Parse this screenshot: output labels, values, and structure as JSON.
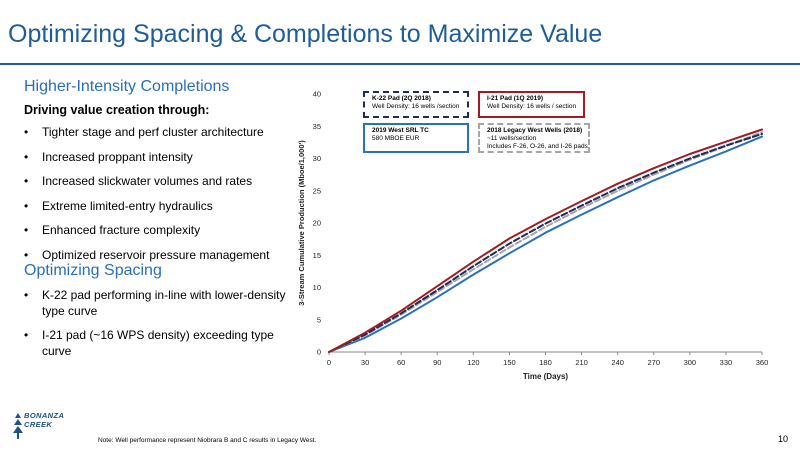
{
  "slide": {
    "title": "Optimizing Spacing & Completions to Maximize Value",
    "page_number": "10",
    "footnote": "Note: Well performance represent Niobrara B and C results in Legacy West.",
    "logo_lines": [
      "BONANZA",
      "CREEK"
    ],
    "colors": {
      "accent_blue": "#1f5c99",
      "accent_red": "#a01c22",
      "navy": "#1f2a55",
      "gray": "#9a9a9a"
    }
  },
  "completions": {
    "heading": "Higher-Intensity Completions",
    "lead": "Driving value creation through:",
    "bullets": [
      "Tighter stage and perf cluster architecture",
      "Increased proppant intensity",
      "Increased slickwater volumes and rates",
      "Extreme limited-entry hydraulics",
      "Enhanced fracture complexity",
      "Optimized reservoir pressure management"
    ]
  },
  "spacing": {
    "heading": "Optimizing Spacing",
    "bullets": [
      "K-22 pad performing in-line with lower-density type curve",
      "I-21 pad (~16 WPS density) exceeding type curve"
    ]
  },
  "legend": {
    "k22": {
      "title": "K-22 Pad (2Q 2018)",
      "lines": [
        "Well Density: 16 wells /section"
      ]
    },
    "i21": {
      "title": "I-21 Pad (1Q 2019)",
      "lines": [
        "Well Density: 16 wells / section"
      ]
    },
    "tc": {
      "title": "2019 West SRL TC",
      "lines": [
        "580 MBOE EUR"
      ]
    },
    "legacy": {
      "title": "2018 Legacy West Wells (2018)",
      "lines": [
        "~11 wells/section",
        "Includes F-26, O-26, and I-26 pads"
      ]
    }
  },
  "chart_data": {
    "type": "line",
    "xlabel": "Time (Days)",
    "ylabel": "3-Stream Cumulative Production (Mboe/1,000')",
    "xlim": [
      0,
      360
    ],
    "ylim": [
      0,
      40
    ],
    "xticks": [
      0,
      30,
      60,
      90,
      120,
      150,
      180,
      210,
      240,
      270,
      300,
      330,
      360
    ],
    "yticks": [
      0,
      5,
      10,
      15,
      20,
      25,
      30,
      35,
      40
    ],
    "grid": false,
    "x": [
      0,
      30,
      60,
      90,
      120,
      150,
      180,
      210,
      240,
      270,
      300,
      330,
      360
    ],
    "series": [
      {
        "key": "tc",
        "name": "2019 West SRL TC",
        "color": "#2a72b8",
        "dash": "solid",
        "values": [
          0,
          2.2,
          5.2,
          8.5,
          12.0,
          15.3,
          18.5,
          21.3,
          24.0,
          26.6,
          28.9,
          31.1,
          33.4
        ]
      },
      {
        "key": "legacy",
        "name": "2018 Legacy West Wells (2018)",
        "color": "#a6a6a6",
        "dash": "dashed",
        "values": [
          0,
          2.6,
          5.8,
          9.3,
          12.8,
          16.2,
          19.4,
          22.3,
          25.0,
          27.5,
          29.8,
          31.9,
          34.1
        ]
      },
      {
        "key": "k22",
        "name": "K-22 Pad (2Q 2018)",
        "color": "#1f2a55",
        "dash": "dashed",
        "values": [
          0,
          2.7,
          6.0,
          9.6,
          13.3,
          16.8,
          19.9,
          22.7,
          25.4,
          27.8,
          30.0,
          32.0,
          33.8
        ]
      },
      {
        "key": "i21",
        "name": "I-21 Pad (1Q 2019)",
        "color": "#a01c22",
        "dash": "solid",
        "values": [
          0,
          3.0,
          6.4,
          10.2,
          14.0,
          17.6,
          20.6,
          23.4,
          26.1,
          28.5,
          30.7,
          32.6,
          34.5
        ]
      }
    ]
  }
}
